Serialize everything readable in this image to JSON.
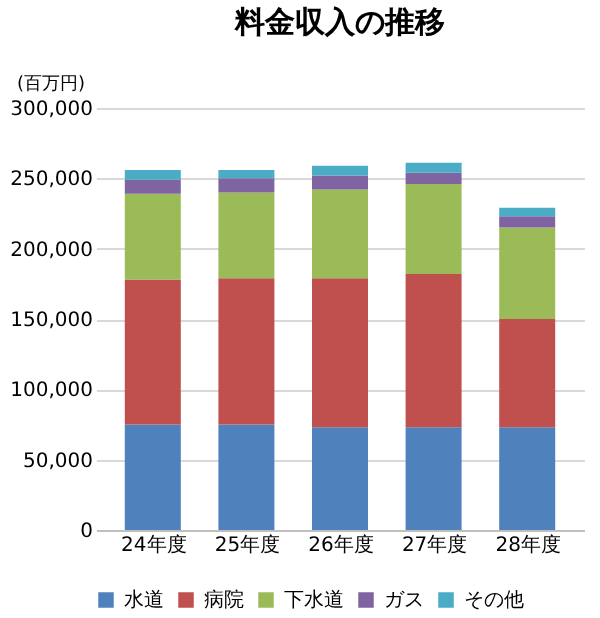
{
  "chart_data": {
    "type": "bar",
    "title": "料金収入の推移",
    "ylabel": "(百万円)",
    "stacked": true,
    "categories": [
      "24年度",
      "25年度",
      "26年度",
      "27年度",
      "28年度"
    ],
    "series": [
      {
        "name": "水道",
        "color": "#4f81bd",
        "values": [
          75000,
          75000,
          73000,
          73000,
          73000
        ]
      },
      {
        "name": "病院",
        "color": "#c0504d",
        "values": [
          103000,
          104000,
          106000,
          109000,
          77000
        ]
      },
      {
        "name": "下水道",
        "color": "#9bbb59",
        "values": [
          61000,
          61000,
          63000,
          64000,
          65000
        ]
      },
      {
        "name": "ガス",
        "color": "#8064a2",
        "values": [
          10000,
          10000,
          10000,
          8000,
          8000
        ]
      },
      {
        "name": "その他",
        "color": "#4bacc6",
        "values": [
          7000,
          6000,
          7000,
          7000,
          6000
        ]
      }
    ],
    "ylim": [
      0,
      300000
    ],
    "yticks": [
      0,
      {
        "value": 50000,
        "label": "50,000"
      },
      {
        "value": 100000,
        "label": "100,000"
      },
      {
        "value": 150000,
        "label": "150,000"
      },
      {
        "value": 200000,
        "label": "200,000"
      },
      {
        "value": 250000,
        "label": "250,000"
      },
      {
        "value": 300000,
        "label": "300,000"
      }
    ],
    "grid": "y",
    "legend": "bottom"
  }
}
